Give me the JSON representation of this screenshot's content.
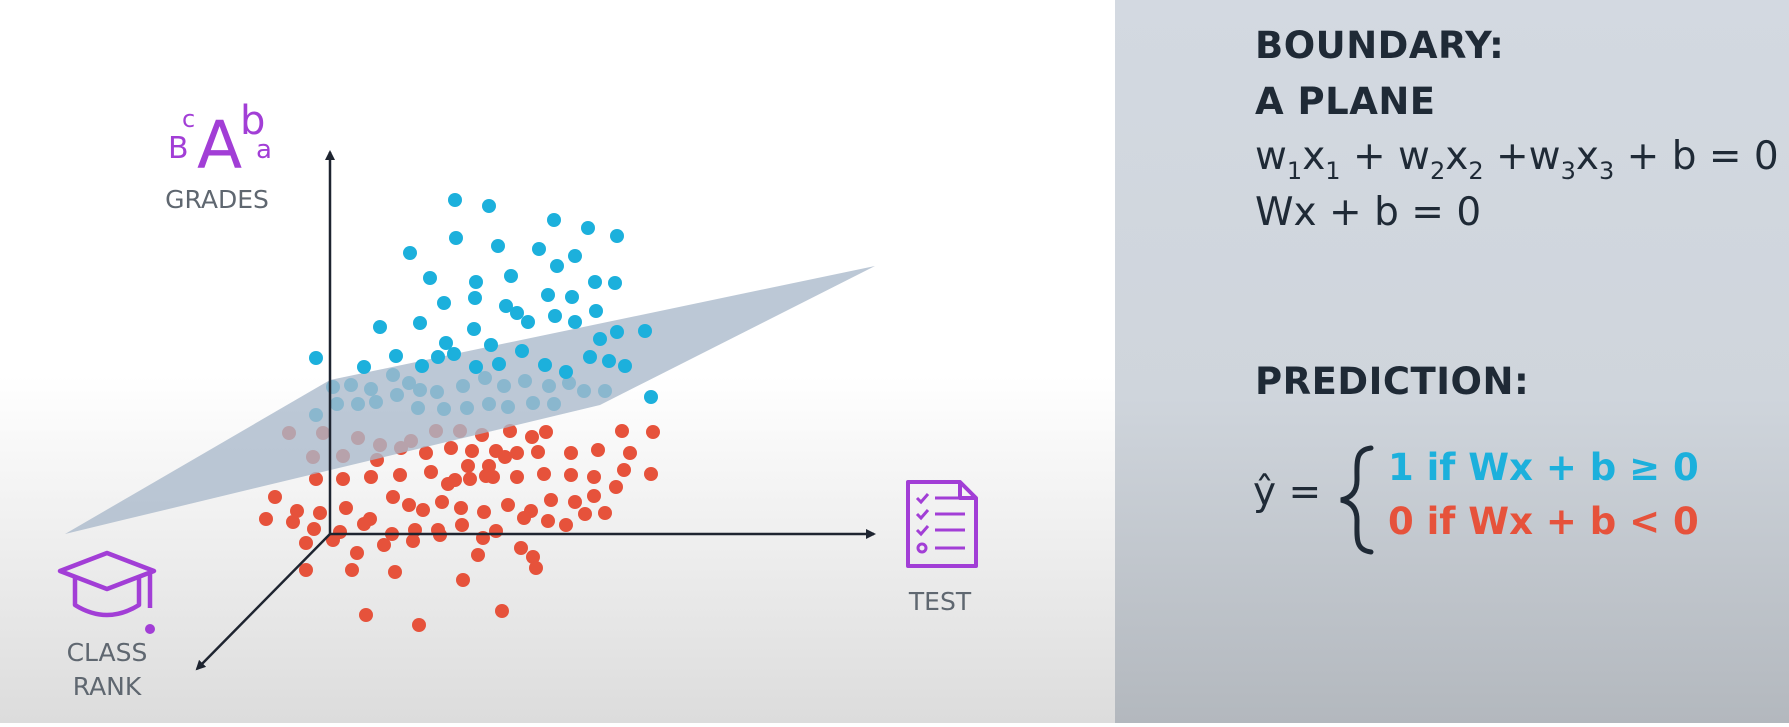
{
  "diagram": {
    "axes": {
      "grades_label": "GRADES",
      "test_label": "TEST",
      "class_rank_line1": "CLASS",
      "class_rank_line2": "RANK"
    },
    "icons": {
      "grades": "letter-grades-icon",
      "test": "test-sheet-icon",
      "class_rank": "graduation-cap-icon"
    },
    "grade_letters": {
      "big": "A",
      "small_b": "b",
      "small_c": "c",
      "cap_b": "B",
      "small_a": "a"
    },
    "colors": {
      "positive": "#1cb0dc",
      "negative": "#e6523b",
      "plane": "#a9b9cb",
      "accent_purple": "#a23ed6",
      "axis": "#1e2430"
    }
  },
  "panel": {
    "boundary_title": "BOUNDARY:",
    "boundary_subtitle": "A PLANE",
    "equation_1": {
      "t1": "w",
      "s1": "1",
      "t2": "x",
      "s2": "1",
      "t3": " + w",
      "s3": "2",
      "t4": "x",
      "s4": "2",
      "t5": " +w",
      "s5": "3",
      "t6": "x",
      "s6": "3",
      "t7": " + b = 0"
    },
    "equation_2": "Wx + b = 0",
    "prediction_title": "PREDICTION:",
    "yhat": "ŷ =",
    "case_positive": "1 if Wx + b ≥ 0",
    "case_negative": "0 if Wx + b < 0"
  }
}
